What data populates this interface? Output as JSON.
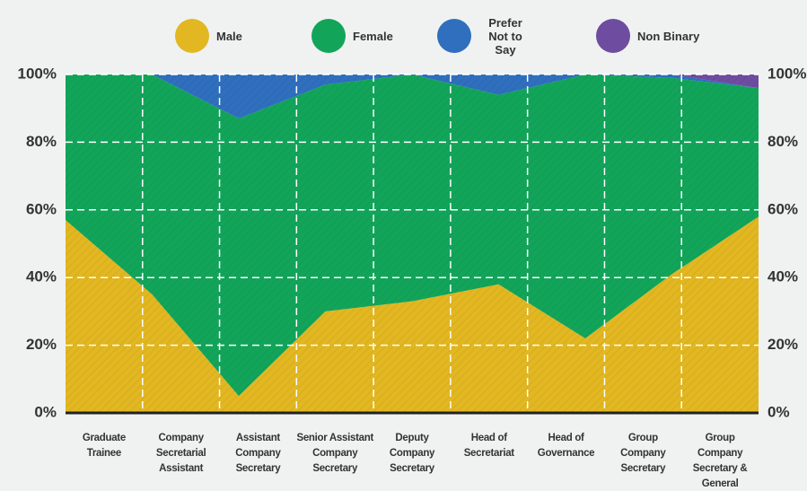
{
  "chart_data": {
    "type": "area",
    "stacked": true,
    "categories": [
      "Graduate Trainee",
      "Company Secretarial Assistant",
      "Assistant Company Secretary",
      "Senior Assistant Company Secretary",
      "Deputy Company Secretary",
      "Head of Secretariat",
      "Head of Governance",
      "Group Company Secretary",
      "Group Company Secretary & General Counsel"
    ],
    "series": [
      {
        "name": "Male",
        "color": "#e2b721",
        "values": [
          57,
          35,
          5,
          30,
          33,
          38,
          22,
          41,
          58
        ]
      },
      {
        "name": "Female",
        "color": "#12a55a",
        "values": [
          43,
          65,
          82,
          67,
          67,
          56,
          78,
          58,
          38
        ]
      },
      {
        "name": "Prefer Not to Say",
        "color": "#2f6fbe",
        "values": [
          0,
          0,
          13,
          3,
          0,
          6,
          0,
          1,
          0
        ]
      },
      {
        "name": "Non Binary",
        "color": "#6e4c9f",
        "values": [
          0,
          0,
          0,
          0,
          0,
          0,
          0,
          0,
          4
        ]
      }
    ],
    "ylim": [
      0,
      100
    ],
    "yticks": [
      {
        "value": 0,
        "label": "0%"
      },
      {
        "value": 20,
        "label": "20%"
      },
      {
        "value": 40,
        "label": "40%"
      },
      {
        "value": 60,
        "label": "60%"
      },
      {
        "value": 80,
        "label": "80%"
      },
      {
        "value": 100,
        "label": "100%"
      }
    ],
    "grid": true,
    "legend": "top"
  }
}
